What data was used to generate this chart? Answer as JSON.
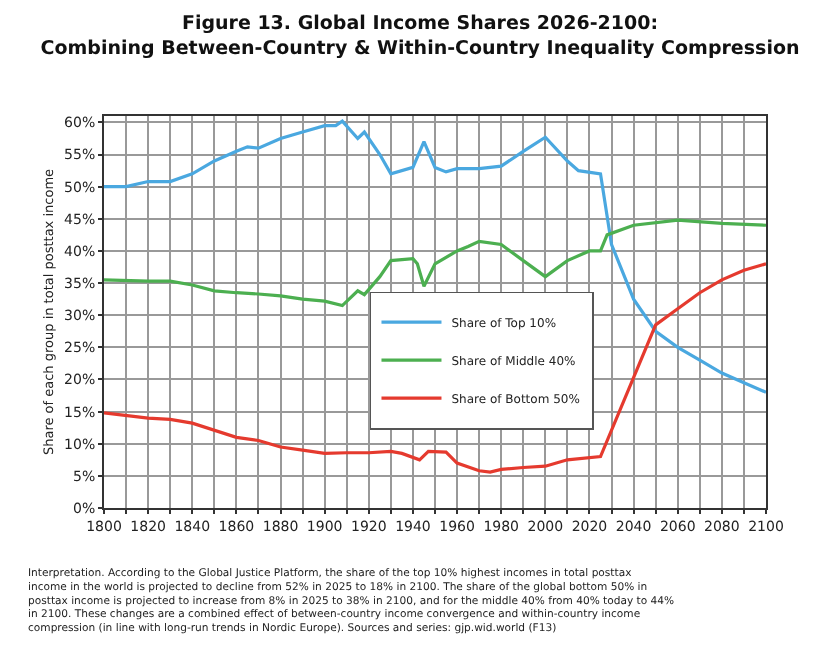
{
  "chart_data": {
    "type": "line",
    "title": "Figure 13. Global Income Shares 2026-2100:\nCombining Between-Country & Within-Country Inequality Compression",
    "ylabel": "Share of each group in total posttax income",
    "annotations": [
      "Interpretation. According to the Global Justice Platform, the share of the top 10% highest incomes in total posttax income in the world is projected to decline from 52% in 2025 to 18% in 2100. The share of the global bottom 50% in posttax income is projected to increase from 8% in 2025 to 38% in 2100, and for the middle 40% from 40% today to 44% in 2100. These changes are a combined effect of between-country income convergence and within-country income compression (in line with long-run trends in Nordic Europe). Sources and series: gjp.wid.world (F13)"
    ],
    "series": [
      {
        "name": "Share of Top 10%",
        "color": "#4aa8e0",
        "x": [
          1800,
          1810,
          1820,
          1830,
          1840,
          1850,
          1860,
          1865,
          1870,
          1880,
          1890,
          1900,
          1905,
          1908,
          1915,
          1918,
          1925,
          1930,
          1940,
          1945,
          1950,
          1955,
          1960,
          1970,
          1980,
          1990,
          2000,
          2010,
          2015,
          2025,
          2030,
          2040,
          2050,
          2060,
          2070,
          2080,
          2090,
          2100
        ],
        "values": [
          50,
          50,
          50.8,
          50.8,
          52,
          54,
          55.5,
          56.2,
          56,
          57.5,
          58.5,
          59.5,
          59.5,
          60.2,
          57.5,
          58.5,
          55,
          52,
          53,
          57,
          53,
          52.3,
          52.8,
          52.8,
          53.2,
          55.5,
          57.7,
          54,
          52.5,
          52,
          41,
          32.5,
          27.5,
          25,
          23,
          21,
          19.5,
          18
        ]
      },
      {
        "name": "Share of Middle 40%",
        "color": "#4caf50",
        "x": [
          1800,
          1820,
          1830,
          1840,
          1850,
          1860,
          1870,
          1880,
          1890,
          1900,
          1908,
          1915,
          1918,
          1925,
          1930,
          1940,
          1942,
          1945,
          1950,
          1960,
          1965,
          1970,
          1980,
          1990,
          2000,
          2010,
          2020,
          2025,
          2028,
          2040,
          2060,
          2080,
          2100
        ],
        "values": [
          35.5,
          35.3,
          35.3,
          34.7,
          33.8,
          33.5,
          33.3,
          33,
          32.5,
          32.2,
          31.5,
          33.8,
          33.2,
          36,
          38.5,
          38.8,
          38,
          34.5,
          38,
          40,
          40.7,
          41.5,
          41,
          38.5,
          36,
          38.5,
          40,
          40,
          42.5,
          44,
          44.8,
          44.3,
          44
        ]
      },
      {
        "name": "Share of Bottom 50%",
        "color": "#e53a2e",
        "x": [
          1800,
          1820,
          1830,
          1840,
          1860,
          1870,
          1880,
          1890,
          1900,
          1910,
          1920,
          1930,
          1935,
          1943,
          1947,
          1955,
          1960,
          1970,
          1975,
          1980,
          1990,
          2000,
          2010,
          2025,
          2050,
          2060,
          2070,
          2080,
          2090,
          2100
        ],
        "values": [
          14.8,
          14,
          13.8,
          13.2,
          11,
          10.5,
          9.5,
          9,
          8.5,
          8.6,
          8.6,
          8.8,
          8.5,
          7.5,
          8.8,
          8.7,
          7,
          5.8,
          5.6,
          6,
          6.3,
          6.5,
          7.5,
          8,
          28.5,
          31,
          33.5,
          35.5,
          37,
          38
        ]
      }
    ],
    "xlim": [
      1800,
      2100
    ],
    "xticks": [
      1800,
      {
        "value": 1810,
        "label": null
      },
      1820,
      {
        "value": 1830,
        "label": null
      },
      1840,
      {
        "value": 1850,
        "label": null
      },
      1860,
      {
        "value": 1870,
        "label": null
      },
      1880,
      {
        "value": 1890,
        "label": null
      },
      1900,
      {
        "value": 1910,
        "label": null
      },
      1920,
      {
        "value": 1930,
        "label": null
      },
      1940,
      {
        "value": 1950,
        "label": null
      },
      1960,
      {
        "value": 1970,
        "label": null
      },
      1980,
      {
        "value": 1990,
        "label": null
      },
      2000,
      {
        "value": 2010,
        "label": null
      },
      2020,
      {
        "value": 2030,
        "label": null
      },
      2040,
      {
        "value": 2050,
        "label": null
      },
      2060,
      {
        "value": 2070,
        "label": null
      },
      2080,
      {
        "value": 2090,
        "label": null
      },
      2100
    ],
    "ylim": [
      0,
      61
    ],
    "yticks": [
      {
        "value": 0,
        "label": "0%"
      },
      {
        "value": 5,
        "label": "5%"
      },
      {
        "value": 10,
        "label": "10%"
      },
      {
        "value": 15,
        "label": "15%"
      },
      {
        "value": 20,
        "label": "20%"
      },
      {
        "value": 25,
        "label": "25%"
      },
      {
        "value": 30,
        "label": "30%"
      },
      {
        "value": 35,
        "label": "35%"
      },
      {
        "value": 40,
        "label": "40%"
      },
      {
        "value": 45,
        "label": "45%"
      },
      {
        "value": 50,
        "label": "50%"
      },
      {
        "value": 55,
        "label": "55%"
      },
      {
        "value": 60,
        "label": "60%"
      }
    ],
    "grid": true,
    "legend": "center right",
    "line_style": "solid",
    "marker": "none"
  }
}
